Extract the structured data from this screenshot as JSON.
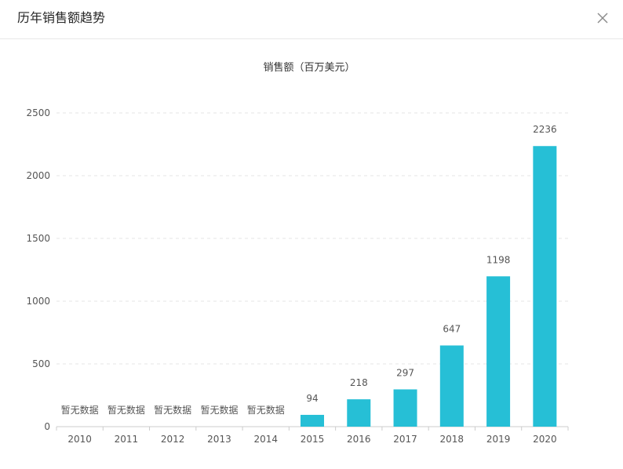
{
  "dialog": {
    "title": "历年销售额趋势"
  },
  "icons": {
    "close": "close-icon"
  },
  "colors": {
    "bar": "#26bfd6",
    "grid": "#e6e6e6",
    "axis": "#cccccc",
    "text": "#555555"
  },
  "chart_data": {
    "type": "bar",
    "title": "销售额（百万美元）",
    "xlabel": "",
    "ylabel": "",
    "categories": [
      "2010",
      "2011",
      "2012",
      "2013",
      "2014",
      "2015",
      "2016",
      "2017",
      "2018",
      "2019",
      "2020"
    ],
    "values": [
      null,
      null,
      null,
      null,
      null,
      94,
      218,
      297,
      647,
      1198,
      2236
    ],
    "no_data_label": "暂无数据",
    "yticks": [
      0,
      500,
      1000,
      1500,
      2000,
      2500
    ],
    "ylim": [
      0,
      2500
    ],
    "grid": true,
    "data_labels": true
  }
}
